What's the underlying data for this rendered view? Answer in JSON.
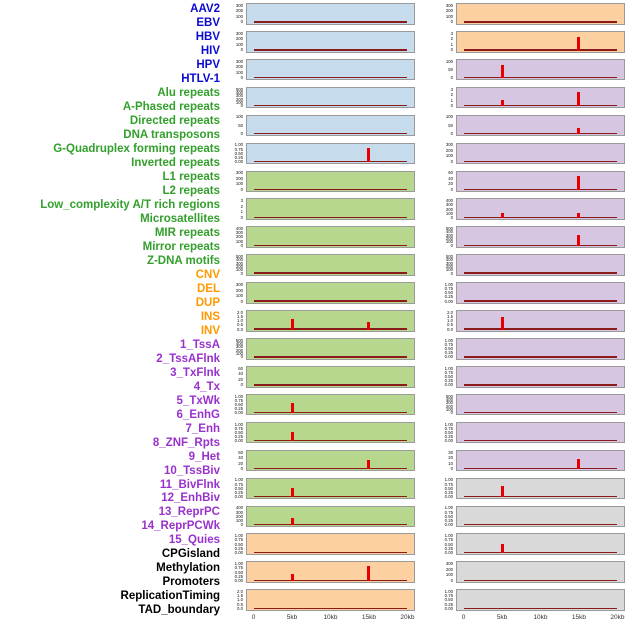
{
  "chart_data": {
    "type": "line",
    "title": "",
    "description_colors": {
      "baseline": "#8b1a1a",
      "spike": "#e80000"
    },
    "x": {
      "min": 0,
      "max": 20000,
      "tick_labels": [
        "0",
        "5kb",
        "10kb",
        "15kb",
        "20kb"
      ],
      "tick_positions": [
        0,
        5000,
        10000,
        15000,
        20000
      ]
    },
    "layout_hint": {
      "columns": 2,
      "rows_per_column": 22,
      "grid": false,
      "legend": "none"
    },
    "groups": {
      "blue": {
        "label_color": "#0a0ad2",
        "panel_color": "#c6dcec"
      },
      "green": {
        "label_color": "#33a02c",
        "panel_color": "#b7d78e"
      },
      "orange": {
        "label_color": "#ff9900",
        "panel_color": "#fdd0a2"
      },
      "purple": {
        "label_color": "#9932cc",
        "panel_color": "#d6c6e1"
      },
      "black": {
        "label_color": "#000000",
        "panel_color": "#d9d9d9"
      }
    },
    "tracks": [
      {
        "label": "AAV2",
        "group": "blue",
        "yticks": [
          "300",
          "200",
          "100",
          "0"
        ],
        "spikes": []
      },
      {
        "label": "EBV",
        "group": "blue",
        "yticks": [
          "300",
          "200",
          "100",
          "0"
        ],
        "spikes": []
      },
      {
        "label": "HBV",
        "group": "blue",
        "yticks": [
          "300",
          "200",
          "100",
          "0"
        ],
        "spikes": []
      },
      {
        "label": "HIV",
        "group": "blue",
        "yticks": [
          "500",
          "400",
          "300",
          "200",
          "100",
          "0"
        ],
        "spikes": []
      },
      {
        "label": "HPV",
        "group": "blue",
        "yticks": [
          "100",
          "50",
          "0"
        ],
        "spikes": []
      },
      {
        "label": "HTLV-1",
        "group": "blue",
        "yticks": [
          "1.00",
          "0.75",
          "0.50",
          "0.25",
          "0.00"
        ],
        "spikes": [
          {
            "x": 15000,
            "h": 0.85
          }
        ]
      },
      {
        "label": "Alu repeats",
        "group": "green",
        "yticks": [
          "300",
          "200",
          "100",
          "0"
        ],
        "spikes": []
      },
      {
        "label": "A-Phased repeats",
        "group": "green",
        "yticks": [
          "3",
          "2",
          "1",
          "0"
        ],
        "spikes": []
      },
      {
        "label": "Directed repeats",
        "group": "green",
        "yticks": [
          "400",
          "300",
          "200",
          "100",
          "0"
        ],
        "spikes": []
      },
      {
        "label": "DNA transposons",
        "group": "green",
        "yticks": [
          "500",
          "400",
          "300",
          "200",
          "100",
          "0"
        ],
        "spikes": []
      },
      {
        "label": "G-Quadruplex forming repeats",
        "group": "green",
        "yticks": [
          "300",
          "200",
          "100",
          "0"
        ],
        "spikes": []
      },
      {
        "label": "Inverted repeats",
        "group": "green",
        "yticks": [
          "2.0",
          "1.5",
          "1.0",
          "0.5",
          "0.0"
        ],
        "spikes": [
          {
            "x": 5000,
            "h": 0.6
          },
          {
            "x": 15000,
            "h": 0.4
          }
        ]
      },
      {
        "label": "L1 repeats",
        "group": "green",
        "yticks": [
          "500",
          "400",
          "300",
          "200",
          "100",
          "0"
        ],
        "spikes": []
      },
      {
        "label": "L2 repeats",
        "group": "green",
        "yticks": [
          "60",
          "40",
          "20",
          "0"
        ],
        "spikes": []
      },
      {
        "label": "Low_complexity A/T rich regions",
        "group": "green",
        "yticks": [
          "1.00",
          "0.75",
          "0.50",
          "0.25",
          "0.00"
        ],
        "spikes": [
          {
            "x": 5000,
            "h": 0.6
          }
        ]
      },
      {
        "label": "Microsatellites",
        "group": "green",
        "yticks": [
          "1.00",
          "0.75",
          "0.50",
          "0.25",
          "0.00"
        ],
        "spikes": [
          {
            "x": 5000,
            "h": 0.5
          }
        ]
      },
      {
        "label": "MIR repeats",
        "group": "green",
        "yticks": [
          "60",
          "40",
          "20",
          "0"
        ],
        "spikes": [
          {
            "x": 15000,
            "h": 0.5
          }
        ]
      },
      {
        "label": "Mirror repeats",
        "group": "green",
        "yticks": [
          "1.00",
          "0.75",
          "0.50",
          "0.25",
          "0.00"
        ],
        "spikes": [
          {
            "x": 5000,
            "h": 0.5
          }
        ]
      },
      {
        "label": "Z-DNA motifs",
        "group": "green",
        "yticks": [
          "400",
          "300",
          "200",
          "100",
          "0"
        ],
        "spikes": [
          {
            "x": 5000,
            "h": 0.35
          }
        ]
      },
      {
        "label": "CNV",
        "group": "orange",
        "yticks": [
          "1.00",
          "0.75",
          "0.50",
          "0.25",
          "0.00"
        ],
        "spikes": []
      },
      {
        "label": "DEL",
        "group": "orange",
        "yticks": [
          "1.00",
          "0.75",
          "0.50",
          "0.25",
          "0.00"
        ],
        "spikes": [
          {
            "x": 5000,
            "h": 0.35
          },
          {
            "x": 15000,
            "h": 0.9
          }
        ]
      },
      {
        "label": "DUP",
        "group": "orange",
        "yticks": [
          "2.0",
          "1.5",
          "1.0",
          "0.5",
          "0.0"
        ],
        "spikes": []
      },
      {
        "label": "INS",
        "group": "orange",
        "yticks": [
          "300",
          "200",
          "100",
          "0"
        ],
        "spikes": []
      },
      {
        "label": "INV",
        "group": "orange",
        "yticks": [
          "3",
          "2",
          "1",
          "0"
        ],
        "spikes": [
          {
            "x": 15000,
            "h": 0.8
          }
        ]
      },
      {
        "label": "1_TssA",
        "group": "purple",
        "yticks": [
          "100",
          "50",
          "0"
        ],
        "spikes": [
          {
            "x": 5000,
            "h": 0.75
          }
        ]
      },
      {
        "label": "2_TssAFlnk",
        "group": "purple",
        "yticks": [
          "3",
          "2",
          "1",
          "0"
        ],
        "spikes": [
          {
            "x": 5000,
            "h": 0.3
          },
          {
            "x": 15000,
            "h": 0.85
          }
        ]
      },
      {
        "label": "3_TxFlnk",
        "group": "purple",
        "yticks": [
          "100",
          "50",
          "0"
        ],
        "spikes": [
          {
            "x": 15000,
            "h": 0.3
          }
        ]
      },
      {
        "label": "4_Tx",
        "group": "purple",
        "yticks": [
          "300",
          "200",
          "100",
          "0"
        ],
        "spikes": []
      },
      {
        "label": "5_TxWk",
        "group": "purple",
        "yticks": [
          "60",
          "40",
          "20",
          "0"
        ],
        "spikes": [
          {
            "x": 15000,
            "h": 0.8
          }
        ]
      },
      {
        "label": "6_EnhG",
        "group": "purple",
        "yticks": [
          "400",
          "300",
          "200",
          "100",
          "0"
        ],
        "spikes": [
          {
            "x": 5000,
            "h": 0.25
          },
          {
            "x": 15000,
            "h": 0.25
          }
        ]
      },
      {
        "label": "7_Enh",
        "group": "purple",
        "yticks": [
          "500",
          "400",
          "300",
          "200",
          "100",
          "0"
        ],
        "spikes": [
          {
            "x": 15000,
            "h": 0.6
          }
        ]
      },
      {
        "label": "8_ZNF_Rpts",
        "group": "purple",
        "yticks": [
          "500",
          "400",
          "300",
          "200",
          "100",
          "0"
        ],
        "spikes": []
      },
      {
        "label": "9_Het",
        "group": "purple",
        "yticks": [
          "1.00",
          "0.75",
          "0.50",
          "0.25",
          "0.00"
        ],
        "spikes": []
      },
      {
        "label": "10_TssBiv",
        "group": "purple",
        "yticks": [
          "2.0",
          "1.5",
          "1.0",
          "0.5",
          "0.0"
        ],
        "spikes": [
          {
            "x": 5000,
            "h": 0.7
          }
        ]
      },
      {
        "label": "11_BivFlnk",
        "group": "purple",
        "yticks": [
          "1.00",
          "0.75",
          "0.50",
          "0.25",
          "0.00"
        ],
        "spikes": []
      },
      {
        "label": "12_EnhBiv",
        "group": "purple",
        "yticks": [
          "1.00",
          "0.75",
          "0.50",
          "0.25",
          "0.00"
        ],
        "spikes": []
      },
      {
        "label": "13_ReprPC",
        "group": "purple",
        "yticks": [
          "500",
          "400",
          "300",
          "200",
          "100",
          "0"
        ],
        "spikes": []
      },
      {
        "label": "14_ReprPCWk",
        "group": "purple",
        "yticks": [
          "1.00",
          "0.75",
          "0.50",
          "0.25",
          "0.00"
        ],
        "spikes": []
      },
      {
        "label": "15_Quies",
        "group": "purple",
        "yticks": [
          "30",
          "20",
          "10",
          "0"
        ],
        "spikes": [
          {
            "x": 15000,
            "h": 0.55
          }
        ]
      },
      {
        "label": "CPGisland",
        "group": "black",
        "yticks": [
          "1.00",
          "0.75",
          "0.50",
          "0.25",
          "0.00"
        ],
        "spikes": [
          {
            "x": 5000,
            "h": 0.6
          }
        ]
      },
      {
        "label": "Methylation",
        "group": "black",
        "yticks": [
          "1.00",
          "0.75",
          "0.50",
          "0.25",
          "0.00"
        ],
        "spikes": []
      },
      {
        "label": "Promoters",
        "group": "black",
        "yticks": [
          "1.00",
          "0.75",
          "0.50",
          "0.25",
          "0.00"
        ],
        "spikes": [
          {
            "x": 5000,
            "h": 0.5
          }
        ]
      },
      {
        "label": "ReplicationTiming",
        "group": "black",
        "yticks": [
          "300",
          "200",
          "100",
          "0"
        ],
        "spikes": []
      },
      {
        "label": "TAD_boundary",
        "group": "black",
        "yticks": [
          "1.00",
          "0.75",
          "0.50",
          "0.25",
          "0.00"
        ],
        "spikes": []
      }
    ]
  }
}
